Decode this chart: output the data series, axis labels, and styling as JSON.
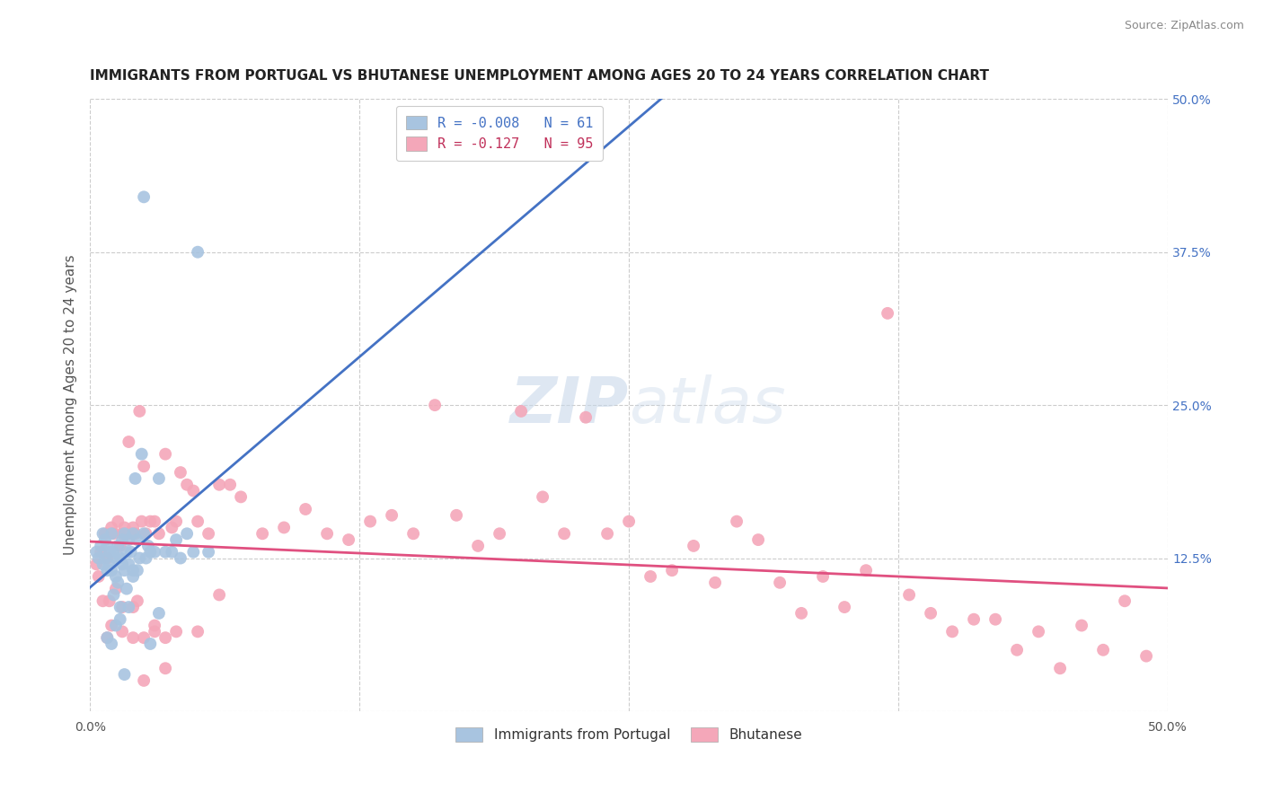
{
  "title": "IMMIGRANTS FROM PORTUGAL VS BHUTANESE UNEMPLOYMENT AMONG AGES 20 TO 24 YEARS CORRELATION CHART",
  "source": "Source: ZipAtlas.com",
  "ylabel": "Unemployment Among Ages 20 to 24 years",
  "xlim": [
    0.0,
    0.5
  ],
  "ylim": [
    0.0,
    0.5
  ],
  "grid_color": "#cccccc",
  "background_color": "#ffffff",
  "portugal_color": "#a8c4e0",
  "bhutanese_color": "#f4a7b9",
  "portugal_line_color": "#4472c4",
  "bhutanese_line_color": "#e05080",
  "portugal_r": -0.008,
  "portugal_n": 61,
  "bhutanese_r": -0.127,
  "bhutanese_n": 95,
  "legend_label_1": "Immigrants from Portugal",
  "legend_label_2": "Bhutanese",
  "watermark": "ZIPatlas",
  "portugal_scatter_x": [
    0.003,
    0.004,
    0.005,
    0.006,
    0.006,
    0.007,
    0.007,
    0.008,
    0.008,
    0.009,
    0.009,
    0.01,
    0.01,
    0.011,
    0.011,
    0.012,
    0.012,
    0.013,
    0.013,
    0.014,
    0.014,
    0.015,
    0.015,
    0.016,
    0.016,
    0.017,
    0.017,
    0.018,
    0.018,
    0.019,
    0.02,
    0.02,
    0.021,
    0.022,
    0.023,
    0.024,
    0.025,
    0.026,
    0.027,
    0.028,
    0.03,
    0.032,
    0.035,
    0.038,
    0.04,
    0.042,
    0.045,
    0.048,
    0.05,
    0.055,
    0.008,
    0.01,
    0.012,
    0.014,
    0.016,
    0.018,
    0.02,
    0.022,
    0.025,
    0.028,
    0.032
  ],
  "portugal_scatter_y": [
    0.13,
    0.125,
    0.135,
    0.145,
    0.12,
    0.14,
    0.125,
    0.135,
    0.115,
    0.13,
    0.12,
    0.145,
    0.115,
    0.13,
    0.095,
    0.125,
    0.11,
    0.135,
    0.105,
    0.125,
    0.085,
    0.14,
    0.12,
    0.145,
    0.115,
    0.13,
    0.1,
    0.14,
    0.12,
    0.13,
    0.145,
    0.115,
    0.19,
    0.14,
    0.125,
    0.21,
    0.145,
    0.125,
    0.135,
    0.13,
    0.13,
    0.19,
    0.13,
    0.13,
    0.14,
    0.125,
    0.145,
    0.13,
    0.375,
    0.13,
    0.06,
    0.055,
    0.07,
    0.075,
    0.03,
    0.085,
    0.11,
    0.115,
    0.42,
    0.055,
    0.08
  ],
  "bhutanese_scatter_x": [
    0.003,
    0.004,
    0.005,
    0.006,
    0.007,
    0.008,
    0.009,
    0.01,
    0.011,
    0.012,
    0.013,
    0.014,
    0.015,
    0.016,
    0.017,
    0.018,
    0.019,
    0.02,
    0.021,
    0.022,
    0.023,
    0.024,
    0.025,
    0.026,
    0.028,
    0.03,
    0.032,
    0.035,
    0.038,
    0.04,
    0.042,
    0.045,
    0.048,
    0.05,
    0.055,
    0.06,
    0.065,
    0.07,
    0.08,
    0.09,
    0.1,
    0.11,
    0.12,
    0.13,
    0.14,
    0.15,
    0.16,
    0.17,
    0.18,
    0.19,
    0.2,
    0.21,
    0.22,
    0.23,
    0.24,
    0.25,
    0.26,
    0.27,
    0.28,
    0.29,
    0.3,
    0.31,
    0.32,
    0.33,
    0.34,
    0.35,
    0.36,
    0.37,
    0.38,
    0.39,
    0.4,
    0.41,
    0.42,
    0.43,
    0.44,
    0.45,
    0.46,
    0.47,
    0.48,
    0.49,
    0.008,
    0.01,
    0.015,
    0.02,
    0.025,
    0.03,
    0.035,
    0.04,
    0.05,
    0.06,
    0.015,
    0.02,
    0.025,
    0.03,
    0.035
  ],
  "bhutanese_scatter_y": [
    0.12,
    0.11,
    0.13,
    0.09,
    0.145,
    0.125,
    0.09,
    0.15,
    0.145,
    0.1,
    0.155,
    0.135,
    0.145,
    0.15,
    0.145,
    0.22,
    0.145,
    0.15,
    0.145,
    0.09,
    0.245,
    0.155,
    0.2,
    0.145,
    0.155,
    0.155,
    0.145,
    0.21,
    0.15,
    0.155,
    0.195,
    0.185,
    0.18,
    0.155,
    0.145,
    0.185,
    0.185,
    0.175,
    0.145,
    0.15,
    0.165,
    0.145,
    0.14,
    0.155,
    0.16,
    0.145,
    0.25,
    0.16,
    0.135,
    0.145,
    0.245,
    0.175,
    0.145,
    0.24,
    0.145,
    0.155,
    0.11,
    0.115,
    0.135,
    0.105,
    0.155,
    0.14,
    0.105,
    0.08,
    0.11,
    0.085,
    0.115,
    0.325,
    0.095,
    0.08,
    0.065,
    0.075,
    0.075,
    0.05,
    0.065,
    0.035,
    0.07,
    0.05,
    0.09,
    0.045,
    0.06,
    0.07,
    0.065,
    0.06,
    0.025,
    0.07,
    0.06,
    0.065,
    0.065,
    0.095,
    0.085,
    0.085,
    0.06,
    0.065,
    0.035
  ]
}
